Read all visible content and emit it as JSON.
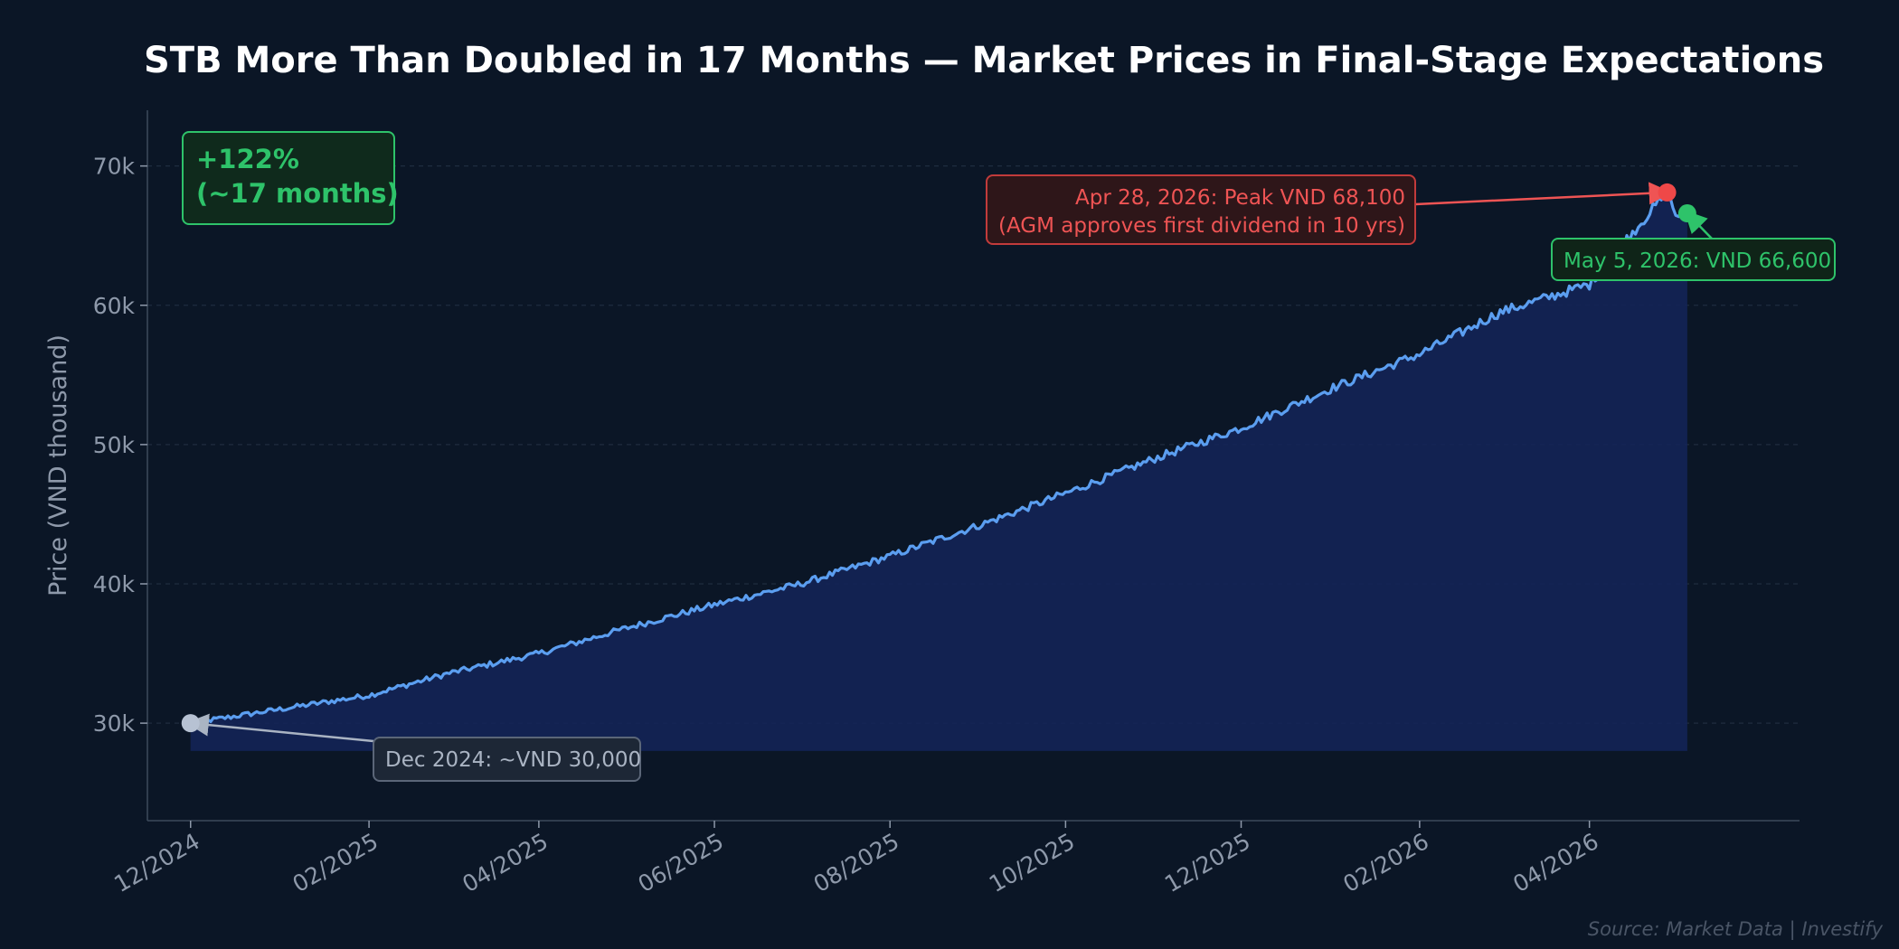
{
  "chart_data": {
    "type": "area",
    "title": "STB More Than Doubled in 17 Months — Market Prices in Final-Stage Expectations",
    "ylabel": "Price (VND thousand)",
    "xlabel": "",
    "x_range": [
      "2024-11-16",
      "2026-06-13"
    ],
    "ylim": [
      23000,
      74000
    ],
    "y_ticks": [
      30000,
      40000,
      50000,
      60000,
      70000
    ],
    "y_tick_labels": [
      "30k",
      "40k",
      "50k",
      "60k",
      "70k"
    ],
    "x_ticks": [
      "2024-12-01",
      "2025-02-01",
      "2025-04-01",
      "2025-06-01",
      "2025-08-01",
      "2025-10-01",
      "2025-12-01",
      "2026-02-01",
      "2026-04-01"
    ],
    "x_tick_labels": [
      "12/2024",
      "02/2025",
      "04/2025",
      "06/2025",
      "08/2025",
      "10/2025",
      "12/2025",
      "02/2026",
      "04/2026"
    ],
    "grid": "horizontal dashed",
    "series": [
      {
        "color": "#5b9ef0",
        "fill_color": "#132456",
        "fill_base": 28000,
        "points": [
          [
            "2024-12-01",
            30000
          ],
          [
            "2025-01-01",
            31000
          ],
          [
            "2025-02-01",
            32000
          ],
          [
            "2025-03-01",
            33600
          ],
          [
            "2025-04-01",
            35000
          ],
          [
            "2025-05-01",
            36800
          ],
          [
            "2025-06-01",
            38500
          ],
          [
            "2025-07-01",
            40000
          ],
          [
            "2025-08-01",
            42000
          ],
          [
            "2025-09-01",
            44200
          ],
          [
            "2025-10-01",
            46500
          ],
          [
            "2025-11-01",
            49000
          ],
          [
            "2025-12-01",
            51200
          ],
          [
            "2026-01-01",
            54000
          ],
          [
            "2026-02-01",
            56500
          ],
          [
            "2026-03-01",
            59500
          ],
          [
            "2026-04-01",
            61500
          ],
          [
            "2026-04-15",
            65000
          ],
          [
            "2026-04-28",
            68100
          ],
          [
            "2026-05-01",
            66500
          ],
          [
            "2026-05-05",
            66600
          ]
        ]
      }
    ],
    "markers": [
      {
        "date": "2024-12-01",
        "value": 30000,
        "color": "#b7c2d3"
      },
      {
        "date": "2026-04-28",
        "value": 68100,
        "color": "#ef4848"
      },
      {
        "date": "2026-05-05",
        "value": 66600,
        "color": "#2ec36a"
      }
    ],
    "annotations": [
      {
        "id": "start",
        "text": [
          "Dec 2024: ~VND 30,000"
        ],
        "color": "#aab4c3",
        "border": "#5b6678",
        "bg": "#1d2736"
      },
      {
        "id": "peak",
        "text": [
          "Apr 28, 2026: Peak VND 68,100",
          "(AGM approves first dividend in 10 yrs)"
        ],
        "color": "#ef5454",
        "border": "#c23b3b",
        "bg": "#2e1619"
      },
      {
        "id": "latest",
        "text": [
          "May 5, 2026: VND 66,600"
        ],
        "color": "#2ec36a",
        "border": "#2ec36a",
        "bg": "#0f2418"
      }
    ],
    "summary_box": {
      "text": [
        "+122%",
        "(~17 months)"
      ],
      "color": "#2ec36a",
      "border": "#2ec36a",
      "bg": "#0f2a1c"
    },
    "source": "Source: Market Data | Investify"
  }
}
